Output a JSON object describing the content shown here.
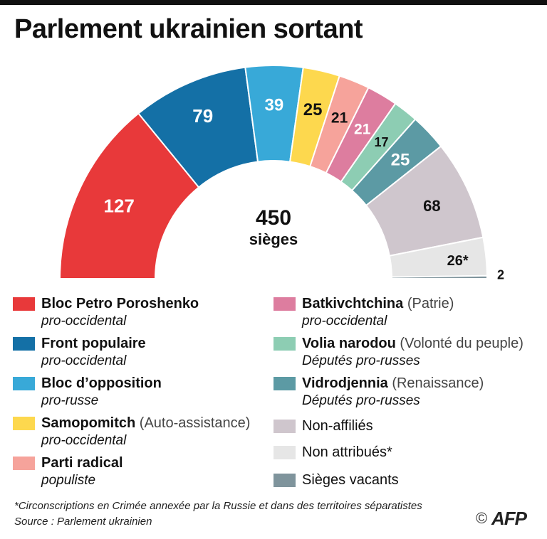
{
  "title": "Parlement ukrainien sortant",
  "center": {
    "number": "450",
    "unit": "sièges"
  },
  "chart_data": {
    "type": "pie",
    "subtype": "parliament-hemicycle",
    "title": "Parlement ukrainien sortant",
    "total": 450,
    "total_label": "450 sièges",
    "series": [
      {
        "name": "Bloc Petro Poroshenko",
        "value": 127,
        "label": "127",
        "color": "#e8393a"
      },
      {
        "name": "Front populaire",
        "value": 79,
        "label": "79",
        "color": "#1470a6"
      },
      {
        "name": "Bloc d'opposition",
        "value": 39,
        "label": "39",
        "color": "#38a9d8"
      },
      {
        "name": "Samopomitch",
        "value": 25,
        "label": "25",
        "color": "#fdd84e"
      },
      {
        "name": "Parti radical",
        "value": 21,
        "label": "21",
        "color": "#f6a39b"
      },
      {
        "name": "Batkivchtchina",
        "value": 21,
        "label": "21",
        "color": "#dd7d9f"
      },
      {
        "name": "Volia narodou",
        "value": 17,
        "label": "17",
        "color": "#8dcdb3"
      },
      {
        "name": "Vidrodjennia",
        "value": 25,
        "label": "25",
        "color": "#5c9aa4"
      },
      {
        "name": "Non-affiliés",
        "value": 68,
        "label": "68",
        "color": "#cfc6cd"
      },
      {
        "name": "Non attribués",
        "value": 26,
        "label": "26*",
        "color": "#e6e6e6"
      },
      {
        "name": "Sièges vacants",
        "value": 2,
        "label": "2",
        "color": "#7f949c"
      }
    ]
  },
  "legend_left": [
    {
      "name": "Bloc Petro Poroshenko",
      "paren": "",
      "sub": "pro-occidental",
      "color": "#e8393a"
    },
    {
      "name": "Front populaire",
      "paren": "",
      "sub": "pro-occidental",
      "color": "#1470a6"
    },
    {
      "name": "Bloc d’opposition",
      "paren": "",
      "sub": "pro-russe",
      "color": "#38a9d8"
    },
    {
      "name": "Samopomitch",
      "paren": "(Auto-assistance)",
      "sub": "pro-occidental",
      "color": "#fdd84e"
    },
    {
      "name": "Parti radical",
      "paren": "",
      "sub": "populiste",
      "color": "#f6a39b"
    }
  ],
  "legend_right": [
    {
      "name": "Batkivchtchina",
      "paren": "(Patrie)",
      "sub": "pro-occidental",
      "color": "#dd7d9f"
    },
    {
      "name": "Volia narodou",
      "paren": "(Volonté du peuple)",
      "sub": "Députés pro-russes",
      "color": "#8dcdb3"
    },
    {
      "name": "Vidrodjennia",
      "paren": "(Renaissance)",
      "sub": "Députés pro-russes",
      "color": "#5c9aa4"
    },
    {
      "name": "Non-affiliés",
      "color": "#cfc6cd"
    },
    {
      "name": "Non attribués*",
      "color": "#e6e6e6"
    },
    {
      "name": "Sièges vacants",
      "color": "#7f949c"
    }
  ],
  "footnote": "*Circonscriptions en Crimée annexée par la Russie et dans des territoires séparatistes",
  "source": "Source : Parlement ukrainien",
  "copyright": "©",
  "agency": "AFP"
}
